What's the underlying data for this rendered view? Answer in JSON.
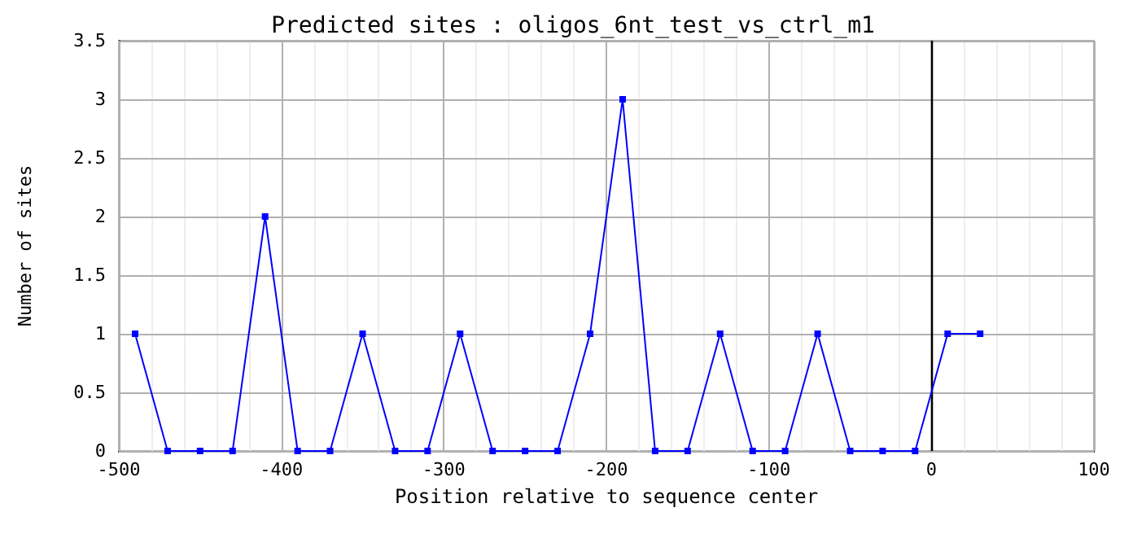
{
  "chart_data": {
    "type": "line",
    "title": "Predicted sites : oligos_6nt_test_vs_ctrl_m1",
    "xlabel": "Position relative to sequence center",
    "ylabel": "Number of sites",
    "x": [
      -490,
      -470,
      -450,
      -430,
      -410,
      -390,
      -370,
      -350,
      -330,
      -310,
      -290,
      -270,
      -250,
      -230,
      -210,
      -190,
      -170,
      -150,
      -130,
      -110,
      -90,
      -70,
      -50,
      -30,
      -10,
      10,
      30
    ],
    "series": [
      {
        "color": "#0000ff",
        "values": [
          1,
          0,
          0,
          0,
          2,
          0,
          0,
          1,
          0,
          0,
          1,
          0,
          0,
          0,
          1,
          3,
          0,
          0,
          1,
          0,
          0,
          1,
          0,
          0,
          0,
          1,
          1
        ]
      }
    ],
    "xlim": [
      -500,
      100
    ],
    "xticks": [
      -500,
      {
        "value": -480,
        "label": null
      },
      {
        "value": -460,
        "label": null
      },
      {
        "value": -440,
        "label": null
      },
      {
        "value": -420,
        "label": null
      },
      -400,
      {
        "value": -380,
        "label": null
      },
      {
        "value": -360,
        "label": null
      },
      {
        "value": -340,
        "label": null
      },
      {
        "value": -320,
        "label": null
      },
      -300,
      {
        "value": -280,
        "label": null
      },
      {
        "value": -260,
        "label": null
      },
      {
        "value": -240,
        "label": null
      },
      {
        "value": -220,
        "label": null
      },
      -200,
      {
        "value": -180,
        "label": null
      },
      {
        "value": -160,
        "label": null
      },
      {
        "value": -140,
        "label": null
      },
      {
        "value": -120,
        "label": null
      },
      -100,
      {
        "value": -80,
        "label": null
      },
      {
        "value": -60,
        "label": null
      },
      {
        "value": -40,
        "label": null
      },
      {
        "value": -20,
        "label": null
      },
      0,
      {
        "value": 20,
        "label": null
      },
      {
        "value": 40,
        "label": null
      },
      {
        "value": 60,
        "label": null
      },
      {
        "value": 80,
        "label": null
      },
      100
    ],
    "ylim": [
      0,
      3.5
    ],
    "yticks": [
      0,
      0.5,
      1,
      1.5,
      2,
      2.5,
      3,
      3.5
    ],
    "ref_lines": [
      {
        "axis": "x",
        "value": 0,
        "color": "#000000"
      }
    ],
    "grid": true,
    "marker": "square",
    "line_style": "solid"
  }
}
